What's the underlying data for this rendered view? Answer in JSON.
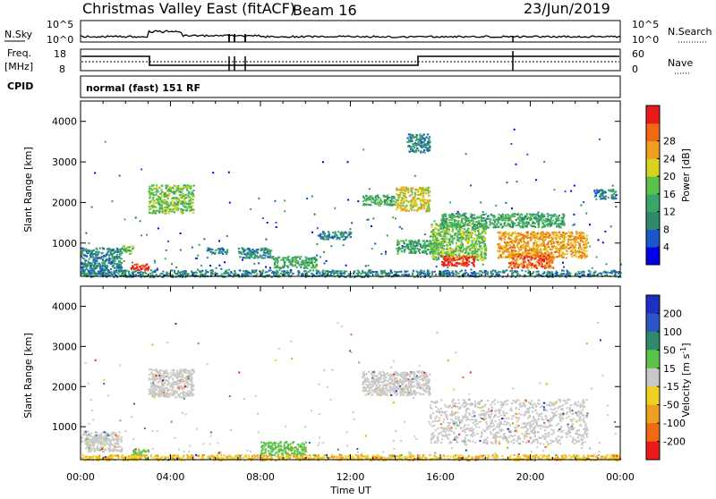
{
  "header": {
    "station": "Christmas Valley East (fitACF)",
    "beam": "Beam 16",
    "date": "23/Jun/2019"
  },
  "noise_panel": {
    "left_label": "N.Sky",
    "right_label": "N.Search",
    "left_ticks": [
      "10^5",
      "10^0"
    ],
    "right_ticks": [
      "10^5",
      "10^0"
    ]
  },
  "freq_panel": {
    "left_label_top": "Freq.",
    "left_label_bottom": "[MHz]",
    "right_label": "Nave",
    "left_ticks": [
      "18",
      "8"
    ],
    "right_ticks": [
      "60",
      "0"
    ]
  },
  "cpid": {
    "label": "CPID",
    "text": "normal (fast) 151 RF"
  },
  "colors": {
    "power_scale": [
      "#0000e6",
      "#1a57c8",
      "#2f8a6a",
      "#3aa66a",
      "#5cc24a",
      "#d9d21e",
      "#f0a020",
      "#f06a14",
      "#e81a1a"
    ],
    "velocity_scale": [
      "#1f2fbf",
      "#2d55c8",
      "#2f8a6a",
      "#5cc24a",
      "#c8c8c8",
      "#f0d020",
      "#f0a020",
      "#f06a14",
      "#e81a1a"
    ]
  },
  "chart_data": [
    {
      "type": "heatmap",
      "name": "Power",
      "ylabel": "Slant Range [km]",
      "xlabel": "",
      "ylim": [
        180,
        4500
      ],
      "yticks": [
        "1000",
        "2000",
        "3000",
        "4000"
      ],
      "colorbar_label": "Power [dB]",
      "colorbar_ticks": [
        "4",
        "8",
        "12",
        "16",
        "20",
        "24",
        "28"
      ],
      "colorbar_range": [
        0,
        32
      ],
      "regions": [
        {
          "t": [
            0.0,
            1.8
          ],
          "r": [
            250,
            900
          ],
          "level": 8
        },
        {
          "t": [
            1.8,
            2.3
          ],
          "r": [
            750,
            950
          ],
          "level": 14
        },
        {
          "t": [
            2.2,
            3.0
          ],
          "r": [
            350,
            500
          ],
          "level": 30
        },
        {
          "t": [
            3.0,
            5.0
          ],
          "r": [
            1750,
            2450
          ],
          "level": 16
        },
        {
          "t": [
            5.5,
            6.5
          ],
          "r": [
            750,
            900
          ],
          "level": 6
        },
        {
          "t": [
            7.0,
            8.5
          ],
          "r": [
            650,
            900
          ],
          "level": 8
        },
        {
          "t": [
            8.5,
            10.5
          ],
          "r": [
            400,
            700
          ],
          "level": 10
        },
        {
          "t": [
            10.5,
            12.0
          ],
          "r": [
            1100,
            1300
          ],
          "level": 8
        },
        {
          "t": [
            12.5,
            14.0
          ],
          "r": [
            1950,
            2200
          ],
          "level": 12
        },
        {
          "t": [
            14.0,
            15.5
          ],
          "r": [
            1800,
            2400
          ],
          "level": 20
        },
        {
          "t": [
            14.5,
            15.5
          ],
          "r": [
            3250,
            3700
          ],
          "level": 8
        },
        {
          "t": [
            14.0,
            16.0
          ],
          "r": [
            750,
            1100
          ],
          "level": 10
        },
        {
          "t": [
            15.5,
            18.0
          ],
          "r": [
            600,
            1500
          ],
          "level": 16
        },
        {
          "t": [
            16.0,
            17.5
          ],
          "r": [
            450,
            700
          ],
          "level": 30
        },
        {
          "t": [
            16.0,
            21.5
          ],
          "r": [
            1400,
            1750
          ],
          "level": 10
        },
        {
          "t": [
            18.5,
            22.5
          ],
          "r": [
            650,
            1300
          ],
          "level": 22
        },
        {
          "t": [
            19.0,
            21.0
          ],
          "r": [
            400,
            750
          ],
          "level": 28
        },
        {
          "t": [
            22.8,
            23.8
          ],
          "r": [
            2100,
            2350
          ],
          "level": 8
        },
        {
          "t": [
            0.0,
            24.0
          ],
          "r": [
            180,
            350
          ],
          "level": 6
        }
      ]
    },
    {
      "type": "heatmap",
      "name": "Velocity",
      "ylabel": "Slant Range [km]",
      "xlabel": "Time UT",
      "ylim": [
        180,
        4500
      ],
      "yticks": [
        "1000",
        "2000",
        "3000",
        "4000"
      ],
      "xticks": [
        "00:00",
        "04:00",
        "08:00",
        "12:00",
        "16:00",
        "20:00",
        "00:00"
      ],
      "colorbar_label": "Velocity [m s^-1]",
      "colorbar_ticks": [
        "200",
        "100",
        "50",
        "15",
        "-15",
        "-50",
        "-100",
        "-200"
      ],
      "regions": [
        {
          "t": [
            0.0,
            1.8
          ],
          "r": [
            400,
            900
          ],
          "level": 0
        },
        {
          "t": [
            2.2,
            3.0
          ],
          "r": [
            300,
            450
          ],
          "level": 30
        },
        {
          "t": [
            3.0,
            5.0
          ],
          "r": [
            1750,
            2450
          ],
          "level": 0
        },
        {
          "t": [
            8.0,
            10.0
          ],
          "r": [
            300,
            650
          ],
          "level": 30
        },
        {
          "t": [
            12.5,
            15.5
          ],
          "r": [
            1800,
            2400
          ],
          "level": 0
        },
        {
          "t": [
            15.5,
            22.5
          ],
          "r": [
            600,
            1700
          ],
          "level": 0
        },
        {
          "t": [
            0.0,
            24.0
          ],
          "r": [
            180,
            320
          ],
          "level": -40
        }
      ]
    }
  ]
}
